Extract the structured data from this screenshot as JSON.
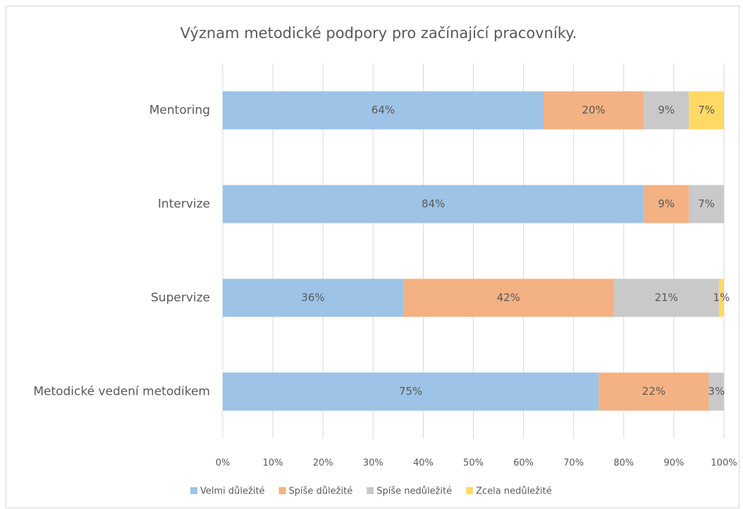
{
  "chart_data": {
    "type": "stacked_bar_horizontal",
    "title": "Význam metodické podpory pro začínající pracovníky.",
    "categories": [
      "Mentoring",
      "Intervize",
      "Supervize",
      "Metodické vedení metodikem"
    ],
    "series": [
      {
        "name": "Velmi důležité",
        "color": "#9dc3e6",
        "values": [
          64,
          84,
          36,
          75
        ],
        "value_labels": [
          "64%",
          "84%",
          "36%",
          "75%"
        ]
      },
      {
        "name": "Spíše důležité",
        "color": "#f4b183",
        "values": [
          20,
          9,
          42,
          22
        ],
        "value_labels": [
          "20%",
          "9%",
          "42%",
          "22%"
        ]
      },
      {
        "name": "Spíše nedůležité",
        "color": "#c9c9c9",
        "values": [
          9,
          7,
          21,
          3
        ],
        "value_labels": [
          "9%",
          "7%",
          "21%",
          "3%"
        ]
      },
      {
        "name": "Zcela nedůležité",
        "color": "#ffd966",
        "values": [
          7,
          null,
          1,
          null
        ],
        "value_labels": [
          "7%",
          null,
          "1%",
          null
        ]
      }
    ],
    "xlim": [
      0,
      100
    ],
    "xticks": [
      {
        "value": 0,
        "label": "0%"
      },
      {
        "value": 10,
        "label": "10%"
      },
      {
        "value": 20,
        "label": "20%"
      },
      {
        "value": 30,
        "label": "30%"
      },
      {
        "value": 40,
        "label": "40%"
      },
      {
        "value": 50,
        "label": "50%"
      },
      {
        "value": 60,
        "label": "60%"
      },
      {
        "value": 70,
        "label": "70%"
      },
      {
        "value": 80,
        "label": "80%"
      },
      {
        "value": 90,
        "label": "90%"
      },
      {
        "value": 100,
        "label": "100%"
      }
    ],
    "grid": true,
    "legend": "bottom"
  }
}
